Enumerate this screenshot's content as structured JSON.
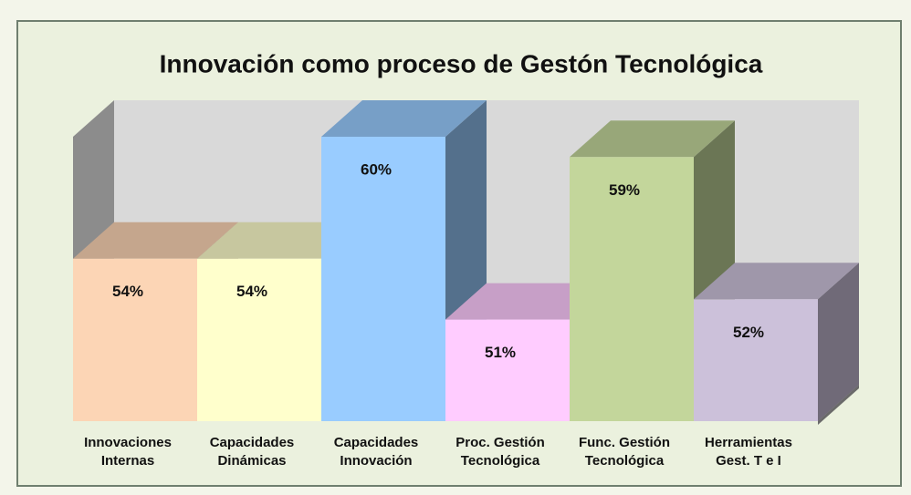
{
  "chart_data": {
    "type": "bar3d",
    "title": "Innovación como proceso de Gestón Tecnológica",
    "categories": [
      "Innovaciones Internas",
      "Capacidades Dinámicas",
      "Capacidades Innovación",
      "Proc. Gestión Tecnológica",
      "Func. Gestión Tecnológica",
      "Herramientas Gest. T e I"
    ],
    "values": [
      54,
      54,
      60,
      51,
      59,
      52
    ],
    "value_labels": [
      "54%",
      "54%",
      "60%",
      "51%",
      "59%",
      "52%"
    ],
    "colors": [
      "#fcd5b5",
      "#ffffcc",
      "#99ccff",
      "#ffccff",
      "#c3d69b",
      "#ccc1da"
    ],
    "ylim": [
      46,
      60
    ]
  }
}
